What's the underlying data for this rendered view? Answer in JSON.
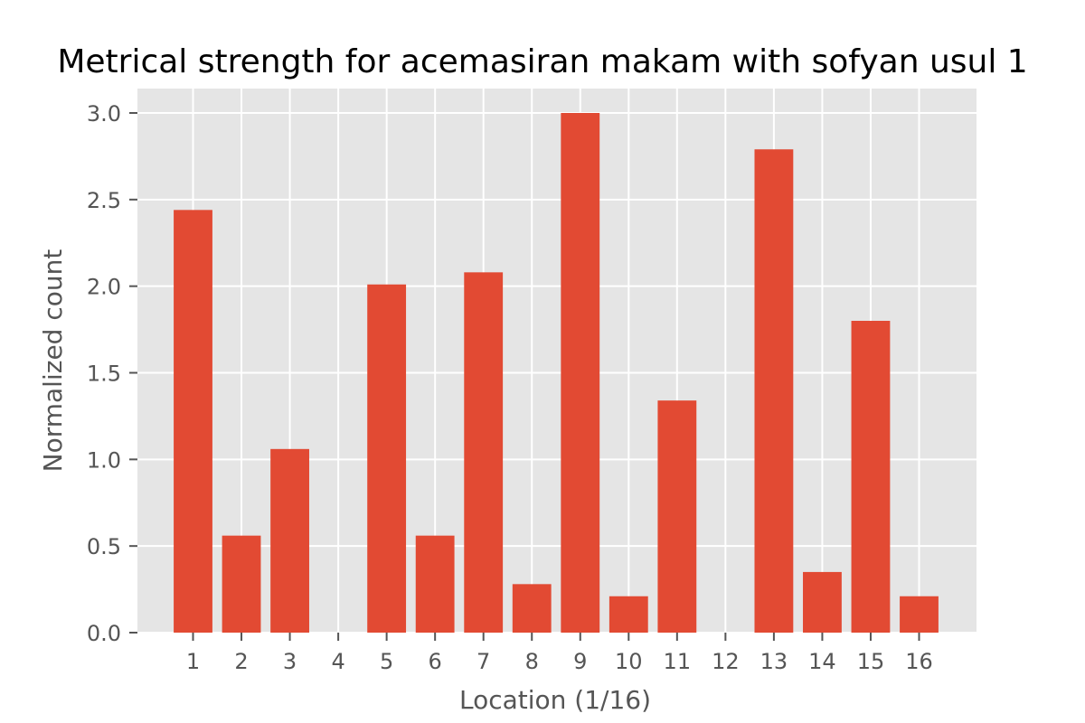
{
  "chart_data": {
    "type": "bar",
    "title": "Metrical strength for acemasiran makam with sofyan usul 1",
    "xlabel": "Location (1/16)",
    "ylabel": "Normalized count",
    "categories": [
      "1",
      "2",
      "3",
      "4",
      "5",
      "6",
      "7",
      "8",
      "9",
      "10",
      "11",
      "12",
      "13",
      "14",
      "15",
      "16"
    ],
    "values": [
      2.44,
      0.56,
      1.06,
      0.0,
      2.01,
      0.56,
      2.08,
      0.28,
      3.0,
      0.21,
      1.34,
      0.0,
      2.79,
      0.35,
      1.8,
      0.21
    ],
    "ylim": [
      0,
      3.0
    ],
    "yticks": [
      "0.0",
      "0.5",
      "1.0",
      "1.5",
      "2.0",
      "2.5",
      "3.0"
    ],
    "grid": true,
    "colors": {
      "bar": "#e24a33",
      "plot_background": "#e5e5e5",
      "grid": "#ffffff"
    }
  }
}
